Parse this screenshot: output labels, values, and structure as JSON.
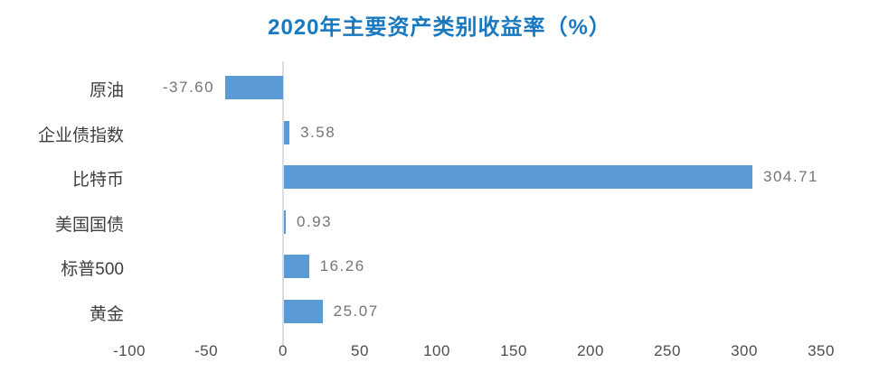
{
  "chart_data": {
    "type": "bar",
    "orientation": "horizontal",
    "title": "2020年主要资产类别收益率（%）",
    "categories": [
      "原油",
      "企业债指数",
      "比特币",
      "美国国债",
      "标普500",
      "黄金"
    ],
    "values": [
      -37.6,
      3.58,
      304.71,
      0.93,
      16.26,
      25.07
    ],
    "value_labels": [
      "-37.60",
      "3.58",
      "304.71",
      "0.93",
      "16.26",
      "25.07"
    ],
    "x_ticks": [
      "-100",
      "-50",
      "0",
      "50",
      "100",
      "150",
      "200",
      "250",
      "300",
      "350"
    ],
    "x_tick_values": [
      -100,
      -50,
      0,
      50,
      100,
      150,
      200,
      250,
      300,
      350
    ],
    "xlim": [
      -100,
      350
    ],
    "grid": false,
    "legend": "none",
    "colors": {
      "bar": "#5B9BD5",
      "title": "#1878C0",
      "category_label": "#3f3f3f",
      "value_label": "#757575",
      "tick_label": "#4d4d4d",
      "axis_line": "#DCDCDC",
      "background": "#ffffff"
    }
  }
}
